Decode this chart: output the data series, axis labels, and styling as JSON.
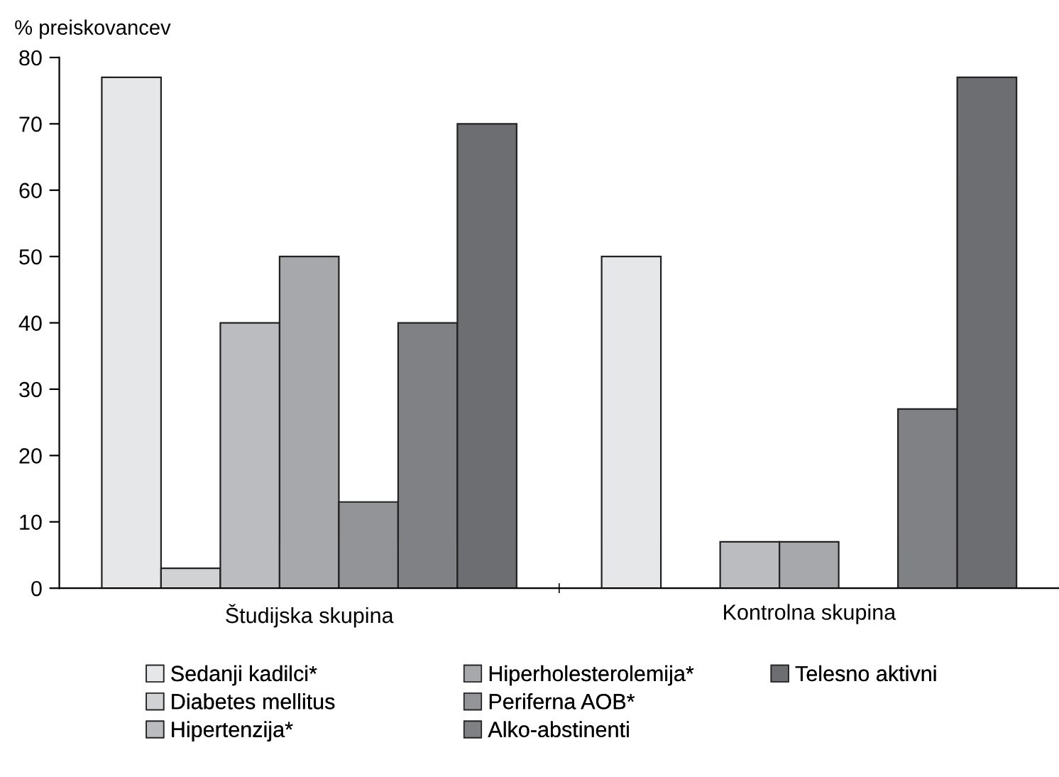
{
  "chart_data": {
    "type": "bar",
    "ylabel": "% preiskovancev",
    "categories": [
      "Študijska skupina",
      "Kontrolna skupina"
    ],
    "series": [
      {
        "name": "Sedanji kadilci*",
        "color": "#e6e7e9",
        "values": [
          77,
          50
        ]
      },
      {
        "name": "Diabetes mellitus",
        "color": "#d1d2d4",
        "values": [
          3,
          null
        ]
      },
      {
        "name": "Hipertenzija*",
        "color": "#bbbcbf",
        "values": [
          40,
          7
        ]
      },
      {
        "name": "Hiperholesterolemija*",
        "color": "#a7a8ab",
        "values": [
          50,
          7
        ]
      },
      {
        "name": "Periferna AOB*",
        "color": "#939497",
        "values": [
          13,
          null
        ]
      },
      {
        "name": "Alko-abstinenti",
        "color": "#808184",
        "values": [
          40,
          27
        ]
      },
      {
        "name": "Telesno aktivni",
        "color": "#6d6e72",
        "values": [
          70,
          77
        ]
      }
    ],
    "ylim": [
      0,
      80
    ],
    "yticks": [
      0,
      10,
      20,
      30,
      40,
      50,
      60,
      70,
      80
    ],
    "grid": false,
    "legend": "bottom"
  }
}
